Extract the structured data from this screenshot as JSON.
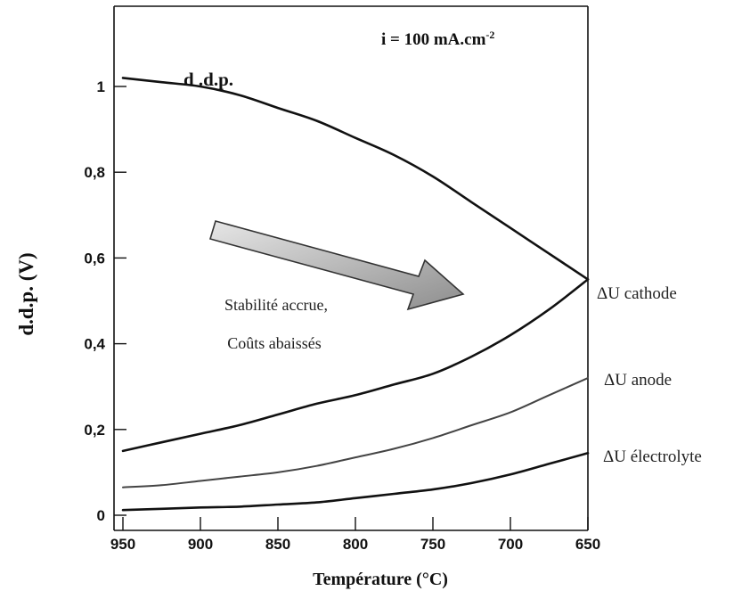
{
  "chart_data": {
    "type": "line",
    "title": "",
    "condition_label": "i = 100 mA.cm",
    "condition_exponent": "-2",
    "xlabel": "Température (°C)",
    "ylabel": "d.d.p.  (V)",
    "xlim": [
      950,
      650
    ],
    "ylim": [
      0,
      1.1
    ],
    "x_ticks": [
      "950",
      "900",
      "850",
      "800",
      "750",
      "700",
      "650"
    ],
    "y_ticks": [
      "0",
      "0,2",
      "0,4",
      "0,6",
      "0,8",
      "1"
    ],
    "grid": false,
    "x": [
      950,
      925,
      900,
      875,
      850,
      825,
      800,
      775,
      750,
      725,
      700,
      675,
      650
    ],
    "series": [
      {
        "name": "d .d.p.",
        "values": [
          1.02,
          1.01,
          1.0,
          0.98,
          0.95,
          0.92,
          0.88,
          0.84,
          0.79,
          0.73,
          0.67,
          0.61,
          0.55
        ]
      },
      {
        "name": "ΔU cathode",
        "values": [
          0.15,
          0.17,
          0.19,
          0.21,
          0.235,
          0.26,
          0.28,
          0.305,
          0.33,
          0.37,
          0.42,
          0.48,
          0.55
        ]
      },
      {
        "name": "ΔU anode",
        "values": [
          0.065,
          0.07,
          0.08,
          0.09,
          0.1,
          0.115,
          0.135,
          0.155,
          0.18,
          0.21,
          0.24,
          0.28,
          0.32
        ]
      },
      {
        "name": "ΔU électrolyte",
        "values": [
          0.012,
          0.015,
          0.018,
          0.02,
          0.025,
          0.03,
          0.04,
          0.05,
          0.06,
          0.075,
          0.095,
          0.12,
          0.145
        ]
      }
    ],
    "annotation_lines": [
      "Stabilité accrue,",
      "Coûts abaissés"
    ],
    "colors": {
      "line": "#111111",
      "arrow_fill": "#a9a9a9",
      "arrow_stroke": "#333333"
    }
  }
}
